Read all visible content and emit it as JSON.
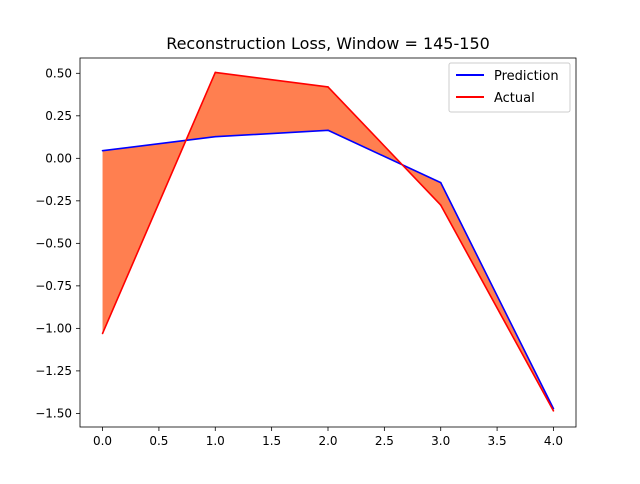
{
  "chart_data": {
    "type": "line",
    "title": "Reconstruction Loss, Window = 145-150",
    "xlabel": "",
    "ylabel": "",
    "x": [
      0,
      1,
      2,
      3,
      4
    ],
    "series": [
      {
        "name": "Prediction",
        "color": "#0000ff",
        "values": [
          0.045,
          0.127,
          0.165,
          -0.143,
          -1.472
        ]
      },
      {
        "name": "Actual",
        "color": "#ff0000",
        "values": [
          -1.03,
          0.505,
          0.42,
          -0.275,
          -1.485
        ]
      }
    ],
    "fill_between": {
      "color": "#ff7f50",
      "between": [
        "Prediction",
        "Actual"
      ]
    },
    "xlim": [
      -0.2,
      4.2
    ],
    "ylim": [
      -1.58,
      0.59
    ],
    "xticks": [
      "0.0",
      "0.5",
      "1.0",
      "1.5",
      "2.0",
      "2.5",
      "3.0",
      "3.5",
      "4.0"
    ],
    "xtick_values": [
      0,
      0.5,
      1,
      1.5,
      2,
      2.5,
      3,
      3.5,
      4
    ],
    "yticks": [
      "0.50",
      "0.25",
      "0.00",
      "−0.25",
      "−0.50",
      "−0.75",
      "−1.00",
      "−1.25",
      "−1.50"
    ],
    "ytick_values": [
      0.5,
      0.25,
      0,
      -0.25,
      -0.5,
      -0.75,
      -1.0,
      -1.25,
      -1.5
    ],
    "legend": {
      "position": "top-right"
    },
    "grid": false
  }
}
